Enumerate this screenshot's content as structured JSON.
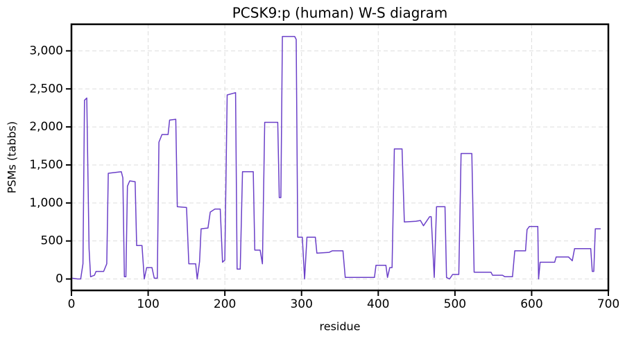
{
  "chart_data": {
    "type": "line",
    "title": "PCSK9:p (human) W-S diagram",
    "xlabel": "residue",
    "ylabel": "PSMs (tabbs)",
    "xlim": [
      0,
      700
    ],
    "ylim": [
      -150,
      3350
    ],
    "xticks": [
      0,
      100,
      200,
      300,
      400,
      500,
      600,
      700
    ],
    "yticks": [
      0,
      500,
      {
        "value": 1000,
        "label": "1,000"
      },
      {
        "value": 1500,
        "label": "1,500"
      },
      {
        "value": 2000,
        "label": "2,000"
      },
      {
        "value": 2500,
        "label": "2,500"
      },
      {
        "value": 3000,
        "label": "3,000"
      }
    ],
    "grid": true,
    "series": [
      {
        "color": "#6a3fc8",
        "x": [
          1,
          8,
          12,
          15,
          17,
          20,
          23,
          25,
          30,
          32,
          42,
          46,
          48,
          65,
          67,
          69,
          71,
          73,
          76,
          83,
          85,
          92,
          95,
          98,
          105,
          108,
          112,
          114,
          118,
          126,
          128,
          136,
          138,
          150,
          153,
          162,
          164,
          167,
          169,
          178,
          181,
          187,
          194,
          197,
          200,
          203,
          214,
          216,
          220,
          223,
          237,
          239,
          246,
          249,
          252,
          269,
          271,
          273,
          275,
          291,
          293,
          295,
          301,
          304,
          307,
          318,
          320,
          336,
          340,
          354,
          357,
          395,
          397,
          410,
          412,
          415,
          418,
          421,
          431,
          434,
          449,
          455,
          459,
          467,
          469,
          473,
          476,
          487,
          489,
          493,
          497,
          505,
          508,
          522,
          525,
          547,
          549,
          562,
          565,
          575,
          578,
          580,
          592,
          594,
          597,
          608,
          609,
          611,
          630,
          632,
          648,
          653,
          656,
          658,
          677,
          679,
          681,
          683,
          690
        ],
        "values": [
          10,
          0,
          0,
          200,
          2350,
          2380,
          400,
          30,
          50,
          100,
          100,
          200,
          1390,
          1410,
          1330,
          30,
          30,
          1220,
          1290,
          1280,
          440,
          440,
          0,
          150,
          150,
          10,
          10,
          1800,
          1900,
          1900,
          2090,
          2100,
          950,
          940,
          200,
          200,
          0,
          230,
          660,
          670,
          880,
          920,
          920,
          220,
          250,
          2420,
          2450,
          130,
          130,
          1410,
          1410,
          380,
          380,
          200,
          2060,
          2060,
          1070,
          1070,
          3190,
          3190,
          3150,
          550,
          550,
          0,
          550,
          550,
          340,
          350,
          370,
          370,
          20,
          20,
          180,
          180,
          20,
          150,
          150,
          1710,
          1710,
          750,
          760,
          770,
          700,
          820,
          820,
          20,
          950,
          950,
          20,
          0,
          60,
          60,
          1650,
          1650,
          90,
          90,
          50,
          50,
          30,
          30,
          370,
          370,
          370,
          650,
          690,
          690,
          0,
          220,
          220,
          290,
          290,
          240,
          400,
          400,
          400,
          100,
          100,
          660,
          660
        ]
      }
    ]
  }
}
